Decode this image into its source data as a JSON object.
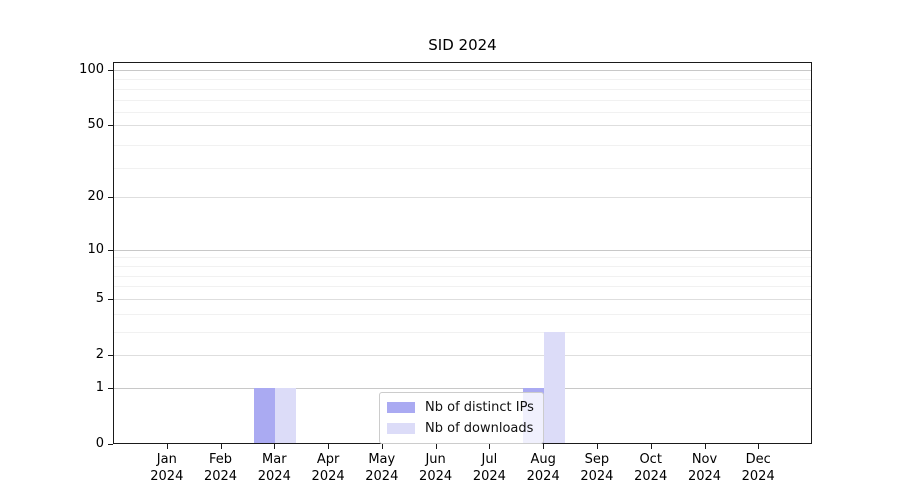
{
  "chart_data": {
    "type": "bar",
    "title": "SID 2024",
    "categories": [
      "Jan",
      "Feb",
      "Mar",
      "Apr",
      "May",
      "Jun",
      "Jul",
      "Aug",
      "Sep",
      "Oct",
      "Nov",
      "Dec"
    ],
    "category_year": "2024",
    "series": [
      {
        "name": "Nb of distinct IPs",
        "color": "#aaaaf2",
        "values": [
          0,
          0,
          1,
          0,
          0,
          0,
          0,
          1,
          0,
          0,
          0,
          0
        ]
      },
      {
        "name": "Nb of downloads",
        "color": "#dcdcf8",
        "values": [
          0,
          0,
          1,
          0,
          0,
          0,
          0,
          3,
          0,
          0,
          0,
          0
        ]
      }
    ],
    "y_ticks": [
      0,
      1,
      2,
      5,
      10,
      20,
      50,
      100
    ],
    "y_scale": "log10(value+1)",
    "ylim": [
      0,
      110
    ],
    "grid": "horizontal",
    "legend_position": "inside-bottom-center"
  }
}
